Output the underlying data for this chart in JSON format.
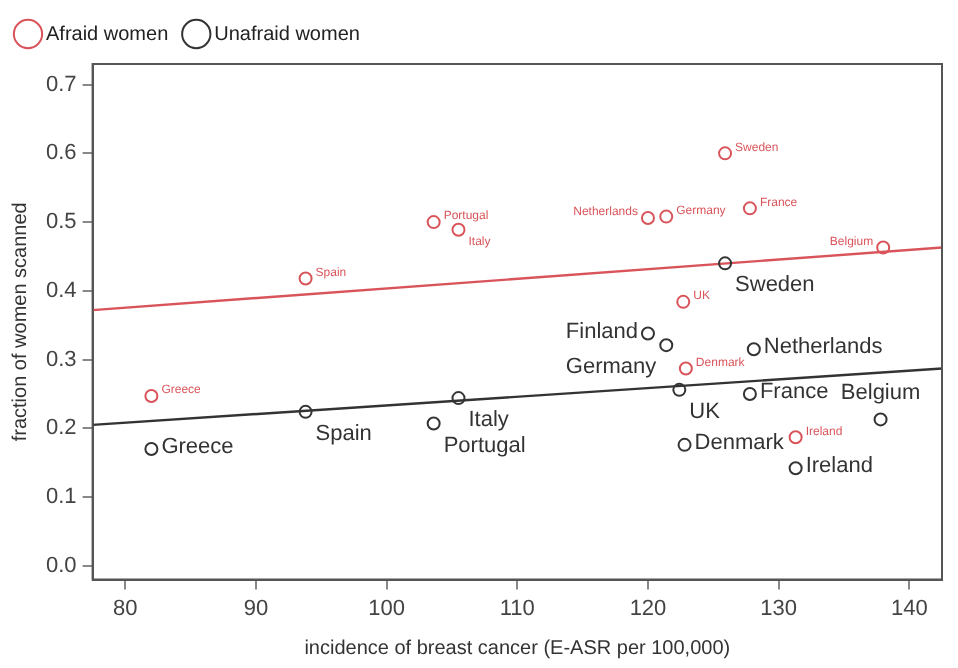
{
  "chart_data": {
    "type": "scatter",
    "xlabel": "incidence of breast cancer (E-ASR per 100,000)",
    "ylabel": "fraction of women scanned",
    "xlim": [
      77.5,
      142.5
    ],
    "xticks": [
      80,
      90,
      100,
      110,
      120,
      130,
      140
    ],
    "ylim": [
      -0.02,
      0.73
    ],
    "yticks": [
      {
        "value": 0,
        "label": "0.0"
      },
      {
        "value": 0.1,
        "label": "0.1"
      },
      {
        "value": 0.2,
        "label": "0.2"
      },
      {
        "value": 0.3,
        "label": "0.3"
      },
      {
        "value": 0.4,
        "label": "0.4"
      },
      {
        "value": 0.5,
        "label": "0.5"
      },
      {
        "value": 0.6,
        "label": "0.6"
      },
      {
        "value": 0.7,
        "label": "0.7"
      }
    ],
    "grid": false,
    "legend": "top left",
    "marker": "circle",
    "series": [
      {
        "name": "Afraid women",
        "color": "#d9545a",
        "x": [
          82,
          93.8,
          103.6,
          105.5,
          120,
          121.4,
          125.9,
          127.8,
          138,
          122.7,
          122.9,
          131.3
        ],
        "values": [
          0.247,
          0.418,
          0.5,
          0.489,
          0.506,
          0.508,
          0.6,
          0.52,
          0.463,
          0.384,
          0.287,
          0.187
        ],
        "value_labels": [
          "Greece",
          "Spain",
          "Portugal",
          "Italy",
          "Netherlands",
          "Germany",
          "Sweden",
          "France",
          "Belgium",
          "UK",
          "Denmark",
          "Ireland"
        ]
      },
      {
        "name": "Unafraid women",
        "color": "#333333",
        "x": [
          82,
          93.8,
          105.5,
          103.6,
          120,
          121.4,
          128.1,
          122.4,
          127.8,
          122.8,
          131.3,
          137.8,
          125.9
        ],
        "values": [
          0.17,
          0.224,
          0.244,
          0.207,
          0.338,
          0.321,
          0.315,
          0.256,
          0.25,
          0.176,
          0.142,
          0.213,
          0.44
        ],
        "value_labels": [
          "Greece",
          "Spain",
          "Italy",
          "Portugal",
          "Finland",
          "Germany",
          "Netherlands",
          "UK",
          "France",
          "Denmark",
          "Ireland",
          "Belgium",
          "Sweden"
        ]
      },
      {
        "type": "line",
        "marker": "none",
        "color": "#d9545a",
        "x": [
          77.5,
          142.5
        ],
        "values": [
          0.372,
          0.463
        ]
      },
      {
        "type": "line",
        "marker": "none",
        "color": "#333333",
        "x": [
          77.5,
          142.5
        ],
        "values": [
          0.205,
          0.287
        ]
      }
    ]
  }
}
